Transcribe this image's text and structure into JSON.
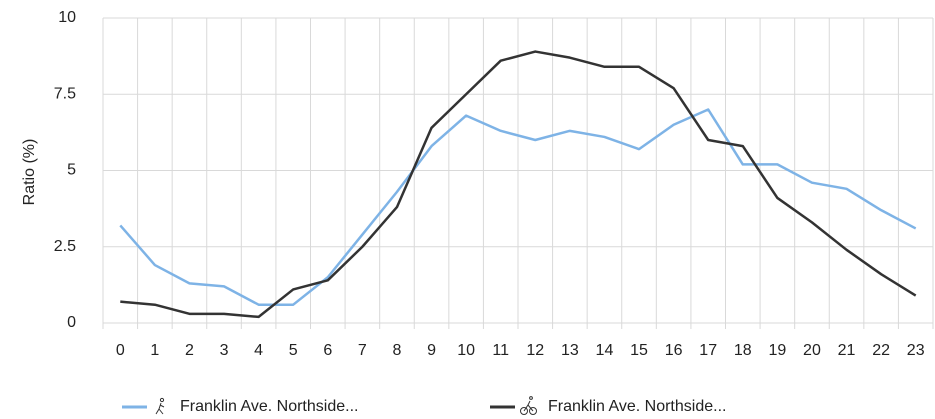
{
  "chart_data": {
    "type": "line",
    "ylabel": "Ratio (%)",
    "categories": [
      "0",
      "1",
      "2",
      "3",
      "4",
      "5",
      "6",
      "7",
      "8",
      "9",
      "10",
      "11",
      "12",
      "13",
      "14",
      "15",
      "16",
      "17",
      "18",
      "19",
      "20",
      "21",
      "22",
      "23"
    ],
    "series": [
      {
        "name": "Franklin Ave. Northside...",
        "color": "#7eb3e6",
        "values": [
          3.2,
          1.9,
          1.3,
          1.2,
          0.6,
          0.6,
          1.5,
          2.9,
          4.3,
          5.8,
          6.8,
          6.3,
          6.0,
          6.3,
          6.1,
          5.7,
          6.5,
          7.0,
          5.2,
          5.2,
          4.6,
          4.4,
          3.7,
          3.1
        ]
      },
      {
        "name": "Franklin Ave. Northside...",
        "color": "#333333",
        "values": [
          0.7,
          0.6,
          0.3,
          0.3,
          0.2,
          1.1,
          1.4,
          2.5,
          3.8,
          6.4,
          7.5,
          8.6,
          8.9,
          8.7,
          8.4,
          8.4,
          7.7,
          6.0,
          5.8,
          4.1,
          3.3,
          2.4,
          1.6,
          0.9
        ]
      }
    ],
    "ylim": [
      0,
      10
    ],
    "yticks": [
      0,
      2.5,
      5,
      7.5,
      10
    ],
    "grid": true,
    "legend": "bottom"
  }
}
